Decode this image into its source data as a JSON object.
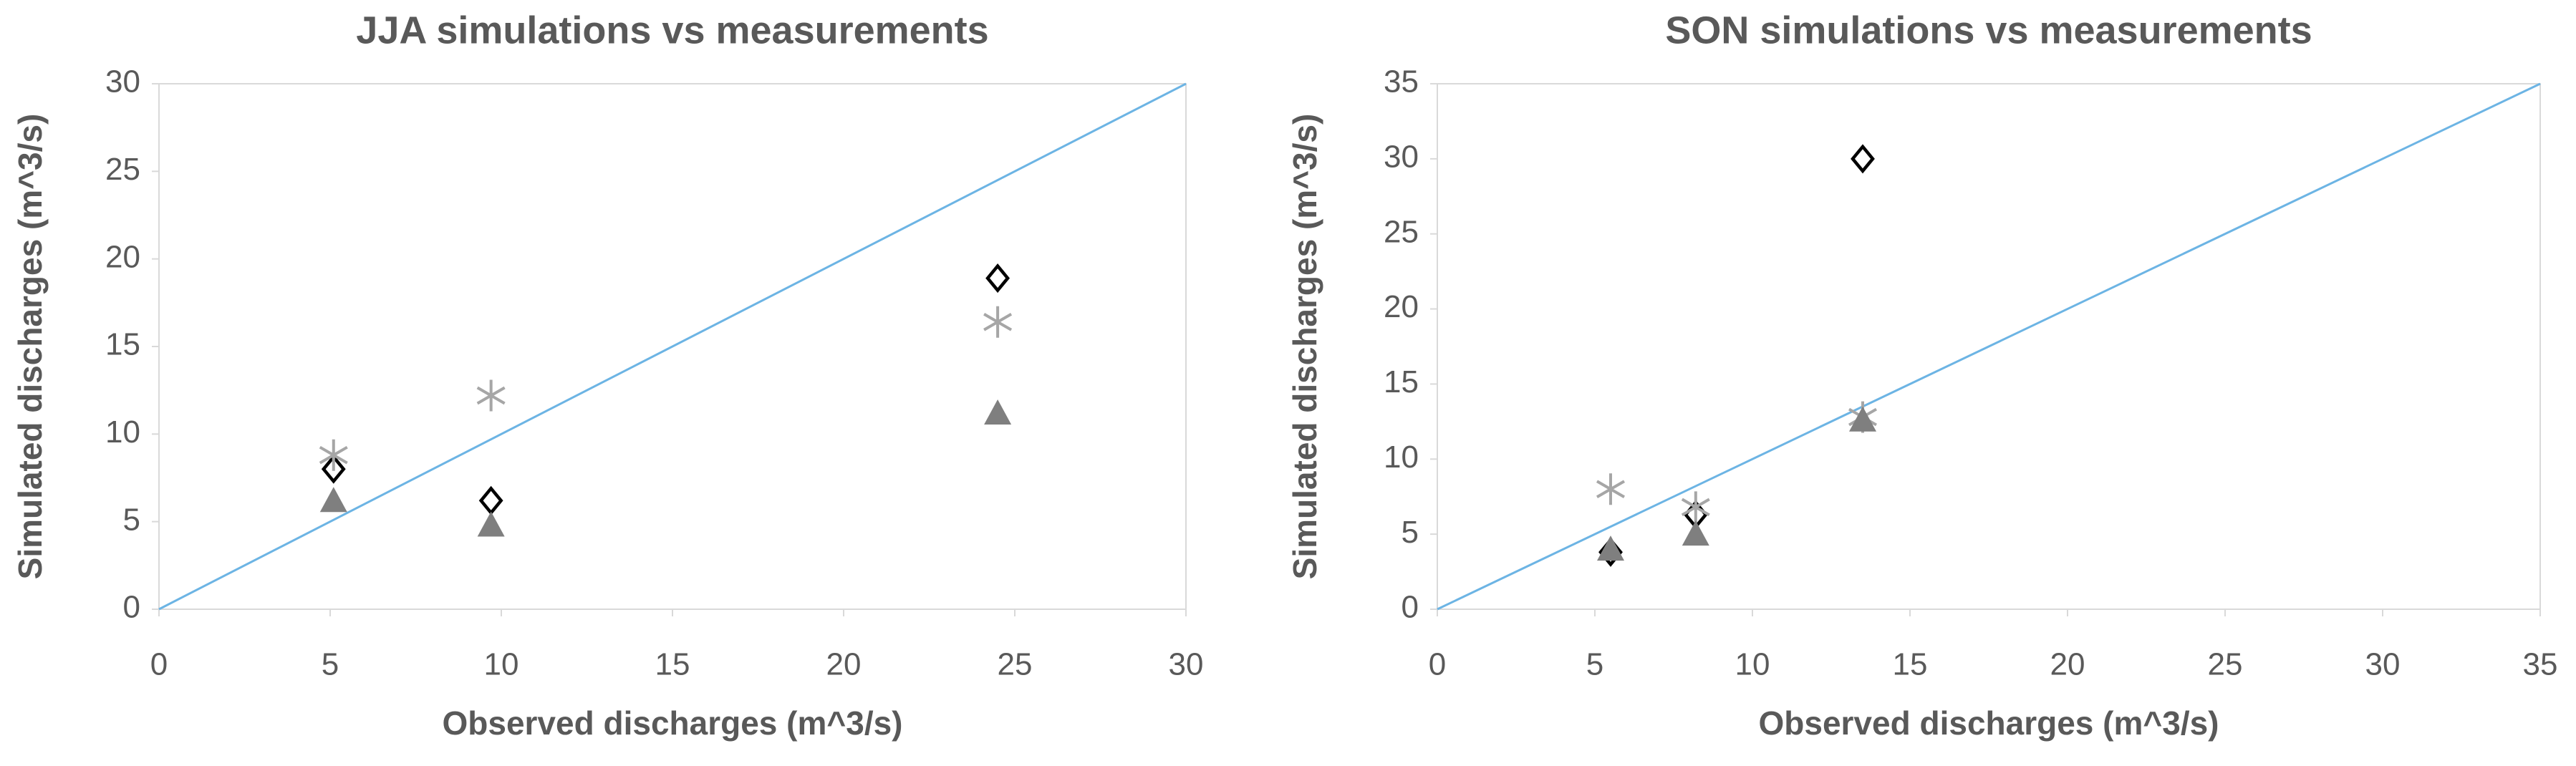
{
  "chart_data": [
    {
      "type": "scatter",
      "title": "JJA simulations vs measurements",
      "x_label": "Observed discharges (m^3/s)",
      "y_label": "Simulated discharges (m^3/s)",
      "xlim": [
        0,
        30
      ],
      "ylim": [
        0,
        30
      ],
      "xticks": [
        0,
        5,
        10,
        15,
        20,
        25,
        30
      ],
      "yticks": [
        0,
        5,
        10,
        15,
        20,
        25,
        30
      ],
      "reference_line": {
        "x": [
          0,
          30
        ],
        "values": [
          0,
          30
        ],
        "color": "#6cb4e4"
      },
      "series": [
        {
          "marker": "diamond",
          "color": "#000000",
          "x": [
            5.1,
            9.7,
            24.5
          ],
          "values": [
            8.0,
            6.2,
            18.9
          ]
        },
        {
          "marker": "asterisk",
          "color": "#a6a6a6",
          "x": [
            5.1,
            9.7,
            24.5
          ],
          "values": [
            8.8,
            12.2,
            16.4
          ]
        },
        {
          "marker": "triangle",
          "color": "#7f7f7f",
          "x": [
            5.1,
            9.7,
            24.5
          ],
          "values": [
            6.2,
            4.8,
            11.2
          ]
        }
      ]
    },
    {
      "type": "scatter",
      "title": "SON simulations vs measurements",
      "x_label": "Observed discharges (m^3/s)",
      "y_label": "Simulated discharges (m^3/s)",
      "xlim": [
        0,
        35
      ],
      "ylim": [
        0,
        35
      ],
      "xticks": [
        0,
        5,
        10,
        15,
        20,
        25,
        30,
        35
      ],
      "yticks": [
        0,
        5,
        10,
        15,
        20,
        25,
        30,
        35
      ],
      "reference_line": {
        "x": [
          0,
          35
        ],
        "values": [
          0,
          35
        ],
        "color": "#6cb4e4"
      },
      "series": [
        {
          "marker": "diamond",
          "color": "#000000",
          "x": [
            5.5,
            8.2,
            13.5
          ],
          "values": [
            3.8,
            6.3,
            30.0
          ]
        },
        {
          "marker": "asterisk",
          "color": "#a6a6a6",
          "x": [
            5.5,
            8.2,
            13.5
          ],
          "values": [
            8.0,
            6.8,
            12.8
          ]
        },
        {
          "marker": "triangle",
          "color": "#7f7f7f",
          "x": [
            5.5,
            8.2,
            13.5
          ],
          "values": [
            4.0,
            5.0,
            12.6
          ]
        }
      ]
    }
  ]
}
